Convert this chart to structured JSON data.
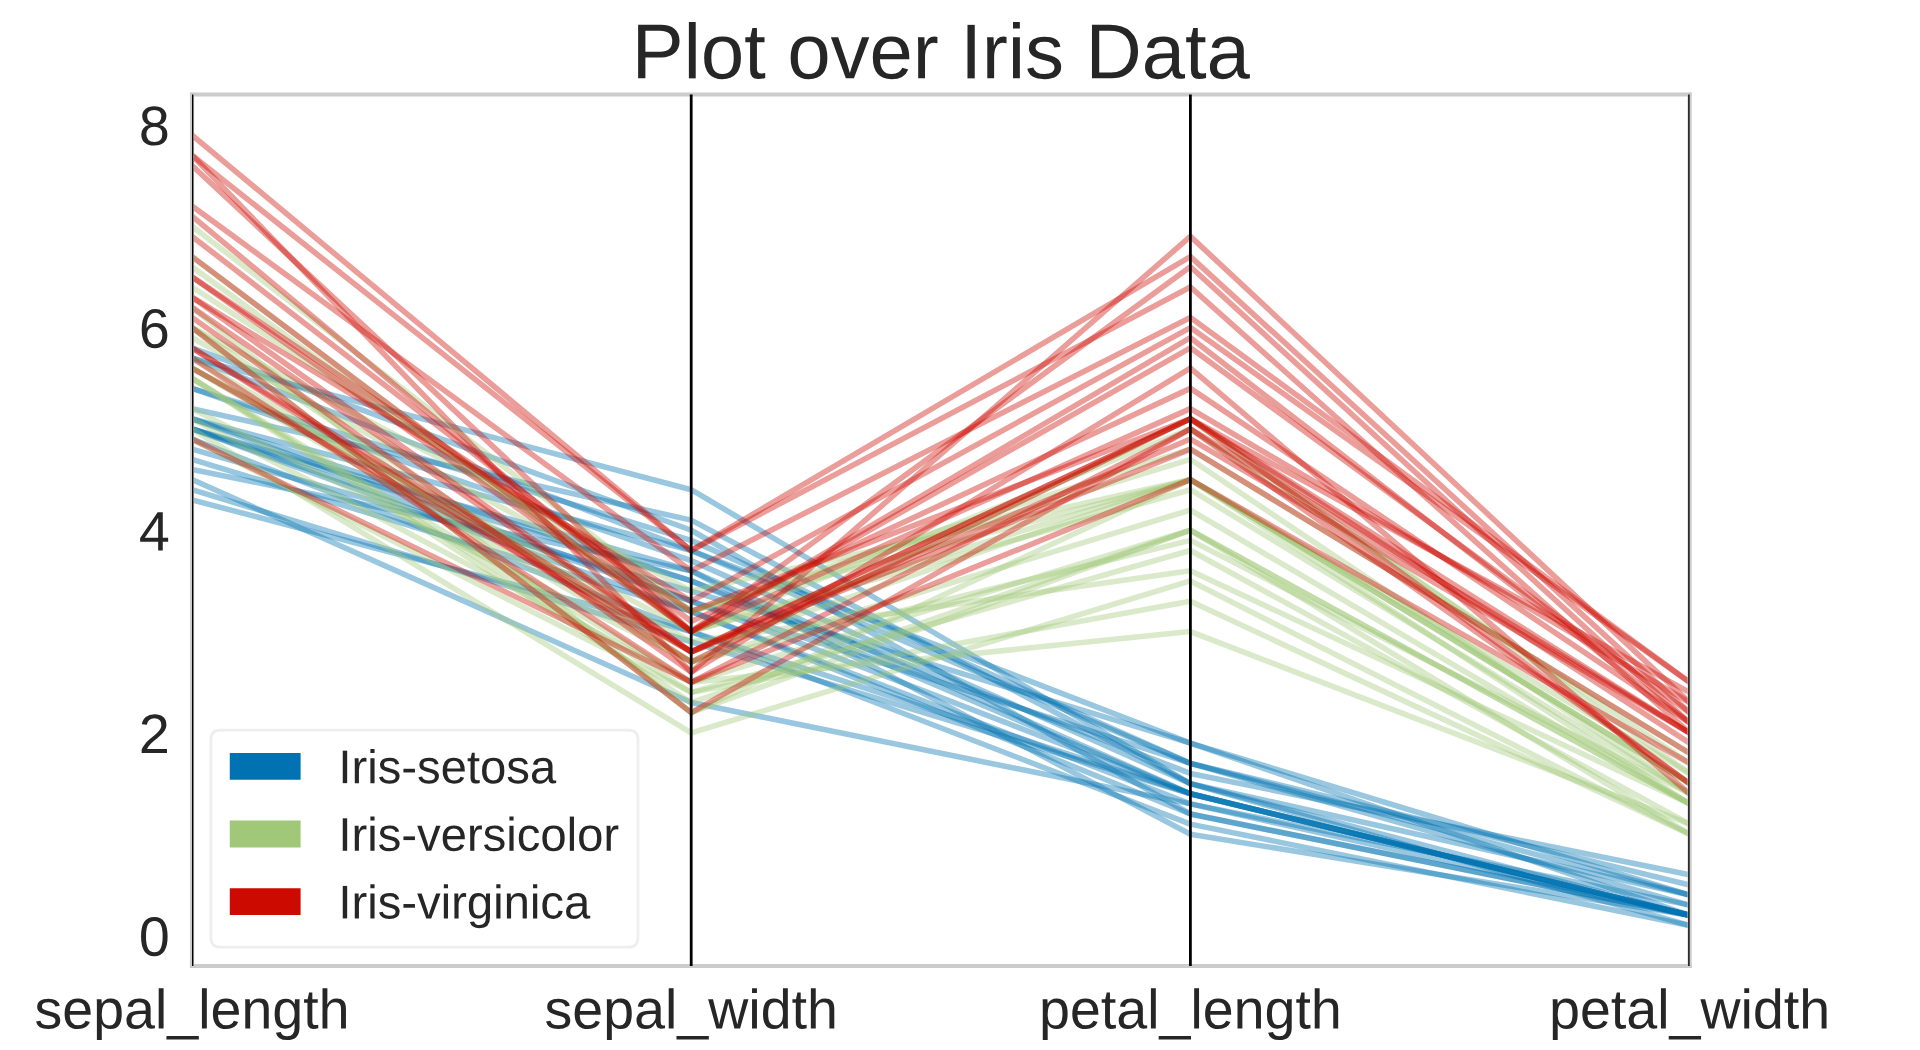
{
  "chart_data": {
    "type": "line",
    "title": "Plot over Iris Data",
    "categories": [
      "sepal_length",
      "sepal_width",
      "petal_length",
      "petal_width"
    ],
    "ylim": [
      -0.3,
      8.3
    ],
    "yticks": [
      0,
      2,
      4,
      6,
      8
    ],
    "grid": "x",
    "legend": "bottom left",
    "series": [
      {
        "name": "Iris-setosa",
        "color": "#0072b2",
        "values": [
          5.1,
          3.5,
          1.4,
          0.2
        ]
      },
      {
        "color": "#0072b2",
        "values": [
          4.9,
          3.0,
          1.4,
          0.2
        ]
      },
      {
        "color": "#0072b2",
        "values": [
          4.7,
          3.2,
          1.3,
          0.2
        ]
      },
      {
        "color": "#0072b2",
        "values": [
          5.0,
          3.6,
          1.4,
          0.2
        ]
      },
      {
        "color": "#0072b2",
        "values": [
          5.4,
          3.9,
          1.7,
          0.4
        ]
      },
      {
        "color": "#0072b2",
        "values": [
          4.4,
          2.9,
          1.4,
          0.2
        ]
      },
      {
        "color": "#0072b2",
        "values": [
          5.4,
          3.7,
          1.5,
          0.2
        ]
      },
      {
        "color": "#0072b2",
        "values": [
          4.3,
          3.0,
          1.1,
          0.1
        ]
      },
      {
        "color": "#0072b2",
        "values": [
          5.8,
          4.0,
          1.2,
          0.2
        ]
      },
      {
        "color": "#0072b2",
        "values": [
          5.7,
          4.4,
          1.5,
          0.4
        ]
      },
      {
        "color": "#0072b2",
        "values": [
          5.7,
          3.8,
          1.7,
          0.3
        ]
      },
      {
        "color": "#0072b2",
        "values": [
          4.6,
          3.6,
          1.0,
          0.2
        ]
      },
      {
        "color": "#0072b2",
        "values": [
          5.1,
          3.3,
          1.7,
          0.5
        ]
      },
      {
        "color": "#0072b2",
        "values": [
          4.8,
          3.4,
          1.9,
          0.2
        ]
      },
      {
        "color": "#0072b2",
        "values": [
          5.2,
          4.1,
          1.5,
          0.1
        ]
      },
      {
        "color": "#0072b2",
        "values": [
          5.0,
          3.2,
          1.2,
          0.2
        ]
      },
      {
        "color": "#0072b2",
        "values": [
          4.5,
          2.3,
          1.3,
          0.3
        ]
      },
      {
        "color": "#0072b2",
        "values": [
          5.0,
          3.5,
          1.6,
          0.6
        ]
      },
      {
        "color": "#0072b2",
        "values": [
          5.1,
          3.8,
          1.9,
          0.4
        ]
      },
      {
        "color": "#0072b2",
        "values": [
          5.0,
          3.3,
          1.4,
          0.2
        ]
      },
      {
        "name": "Iris-versicolor",
        "color": "#a0c878",
        "values": [
          7.0,
          3.2,
          4.7,
          1.4
        ]
      },
      {
        "color": "#a0c878",
        "values": [
          6.4,
          3.2,
          4.5,
          1.5
        ]
      },
      {
        "color": "#a0c878",
        "values": [
          5.5,
          2.3,
          4.0,
          1.3
        ]
      },
      {
        "color": "#a0c878",
        "values": [
          5.7,
          2.8,
          4.5,
          1.3
        ]
      },
      {
        "color": "#a0c878",
        "values": [
          4.9,
          2.4,
          3.3,
          1.0
        ]
      },
      {
        "color": "#a0c878",
        "values": [
          5.2,
          2.7,
          3.9,
          1.4
        ]
      },
      {
        "color": "#a0c878",
        "values": [
          5.0,
          2.0,
          3.5,
          1.0
        ]
      },
      {
        "color": "#a0c878",
        "values": [
          6.0,
          2.2,
          4.0,
          1.0
        ]
      },
      {
        "color": "#a0c878",
        "values": [
          5.6,
          2.9,
          3.6,
          1.3
        ]
      },
      {
        "color": "#a0c878",
        "values": [
          5.6,
          3.0,
          4.5,
          1.5
        ]
      },
      {
        "color": "#a0c878",
        "values": [
          6.2,
          2.2,
          4.5,
          1.5
        ]
      },
      {
        "color": "#a0c878",
        "values": [
          5.9,
          3.2,
          4.8,
          1.8
        ]
      },
      {
        "color": "#a0c878",
        "values": [
          6.6,
          3.0,
          4.4,
          1.4
        ]
      },
      {
        "color": "#a0c878",
        "values": [
          6.7,
          3.0,
          5.0,
          1.7
        ]
      },
      {
        "color": "#a0c878",
        "values": [
          5.5,
          2.4,
          3.8,
          1.1
        ]
      },
      {
        "color": "#a0c878",
        "values": [
          6.0,
          2.7,
          5.1,
          1.6
        ]
      },
      {
        "color": "#a0c878",
        "values": [
          6.0,
          3.4,
          4.5,
          1.6
        ]
      },
      {
        "color": "#a0c878",
        "values": [
          5.5,
          2.5,
          4.0,
          1.3
        ]
      },
      {
        "color": "#a0c878",
        "values": [
          5.6,
          2.7,
          4.2,
          1.3
        ]
      },
      {
        "color": "#a0c878",
        "values": [
          5.1,
          2.5,
          3.0,
          1.1
        ]
      },
      {
        "name": "Iris-virginica",
        "color": "#cc0a00",
        "values": [
          6.3,
          3.3,
          6.0,
          2.5
        ]
      },
      {
        "color": "#cc0a00",
        "values": [
          5.8,
          2.7,
          5.1,
          1.9
        ]
      },
      {
        "color": "#cc0a00",
        "values": [
          7.1,
          3.0,
          5.9,
          2.1
        ]
      },
      {
        "color": "#cc0a00",
        "values": [
          6.5,
          3.0,
          5.8,
          2.2
        ]
      },
      {
        "color": "#cc0a00",
        "values": [
          7.6,
          3.0,
          6.6,
          2.1
        ]
      },
      {
        "color": "#cc0a00",
        "values": [
          4.9,
          2.5,
          4.5,
          1.7
        ]
      },
      {
        "color": "#cc0a00",
        "values": [
          7.2,
          3.6,
          6.1,
          2.5
        ]
      },
      {
        "color": "#cc0a00",
        "values": [
          6.5,
          3.2,
          5.1,
          2.0
        ]
      },
      {
        "color": "#cc0a00",
        "values": [
          5.7,
          2.5,
          5.0,
          2.0
        ]
      },
      {
        "color": "#cc0a00",
        "values": [
          5.8,
          2.8,
          5.1,
          2.4
        ]
      },
      {
        "color": "#cc0a00",
        "values": [
          7.7,
          3.8,
          6.7,
          2.2
        ]
      },
      {
        "color": "#cc0a00",
        "values": [
          7.7,
          2.6,
          6.9,
          2.3
        ]
      },
      {
        "color": "#cc0a00",
        "values": [
          6.0,
          2.2,
          5.0,
          1.5
        ]
      },
      {
        "color": "#cc0a00",
        "values": [
          5.6,
          2.8,
          4.9,
          2.0
        ]
      },
      {
        "color": "#cc0a00",
        "values": [
          6.2,
          2.8,
          4.8,
          1.8
        ]
      },
      {
        "color": "#cc0a00",
        "values": [
          7.9,
          3.8,
          6.4,
          2.0
        ]
      },
      {
        "color": "#cc0a00",
        "values": [
          6.3,
          2.8,
          5.1,
          1.5
        ]
      },
      {
        "color": "#cc0a00",
        "values": [
          6.1,
          2.6,
          5.6,
          1.4
        ]
      },
      {
        "color": "#cc0a00",
        "values": [
          6.9,
          3.1,
          5.4,
          2.1
        ]
      },
      {
        "color": "#cc0a00",
        "values": [
          6.7,
          3.0,
          5.2,
          2.3
        ]
      }
    ]
  }
}
